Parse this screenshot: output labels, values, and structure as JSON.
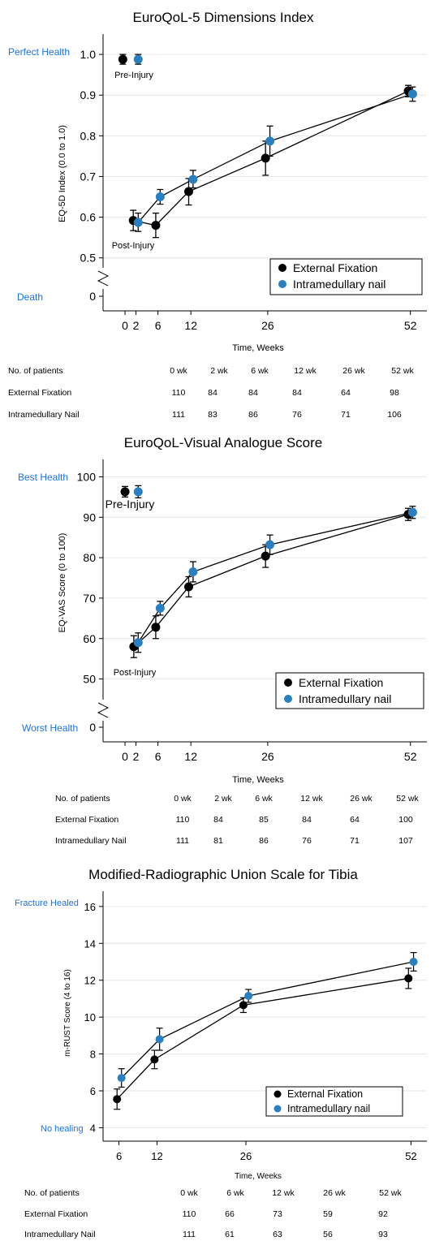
{
  "colors": {
    "external": "#000000",
    "intramedullary": "#2a7fc1",
    "label_blue": "#1a73e8"
  },
  "chart_data": [
    {
      "type": "line",
      "title": "EuroQoL-5 Dimensions Index",
      "xlabel": "Time, Weeks",
      "ylabel": "EQ-5D Index (0.0 to 1.0)",
      "xticks": [
        0,
        2,
        6,
        12,
        26,
        52
      ],
      "yticks": [
        0.5,
        0.6,
        0.7,
        0.8,
        0.9,
        1.0
      ],
      "ytick_labels": [
        "0.5",
        "0.6",
        "0.7",
        "0.8",
        "0.9",
        "1.0"
      ],
      "ylim": [
        0.45,
        1.05
      ],
      "xlim": [
        -4,
        55
      ],
      "extra_ytick": {
        "label": "0",
        "side_label": "Death"
      },
      "top_side_label": "Perfect Health",
      "broken_axis": true,
      "annotations": [
        {
          "text": "Pre-Injury",
          "at": "pre"
        },
        {
          "text": "Post-Injury",
          "at": "post"
        }
      ],
      "legend": {
        "placement": "bottom-right"
      },
      "series": [
        {
          "name": "External Fixation",
          "color_key": "external",
          "pre": {
            "x": -0.4,
            "y": 0.988,
            "lo": 0.976,
            "hi": 1.0
          },
          "x": [
            1.5,
            5.6,
            11.6,
            25.6,
            51.6
          ],
          "y": [
            0.592,
            0.58,
            0.663,
            0.745,
            0.91
          ],
          "lo": [
            0.567,
            0.55,
            0.63,
            0.703,
            0.896
          ],
          "hi": [
            0.617,
            0.61,
            0.695,
            0.787,
            0.924
          ]
        },
        {
          "name": "Intramedullary nail",
          "color_key": "intramedullary",
          "pre": {
            "x": 2.4,
            "y": 0.988,
            "lo": 0.976,
            "hi": 1.0
          },
          "x": [
            2.4,
            6.4,
            12.4,
            26.4,
            52.4
          ],
          "y": [
            0.587,
            0.65,
            0.693,
            0.787,
            0.903
          ],
          "lo": [
            0.565,
            0.632,
            0.672,
            0.75,
            0.885
          ],
          "hi": [
            0.61,
            0.668,
            0.715,
            0.824,
            0.92
          ]
        }
      ],
      "table": {
        "header": [
          "No. of patients",
          "0 wk",
          "2 wk",
          "6 wk",
          "12 wk",
          "26 wk",
          "52 wk"
        ],
        "rows": [
          [
            "External Fixation",
            "110",
            "84",
            "84",
            "84",
            "64",
            "98"
          ],
          [
            "Intramedullary Nail",
            "111",
            "83",
            "86",
            "76",
            "71",
            "106"
          ]
        ]
      }
    },
    {
      "type": "line",
      "title": "EuroQoL-Visual Analogue Score",
      "xlabel": "Time, Weeks",
      "ylabel": "EQ-VAS Score (0 to 100)",
      "xticks": [
        0,
        2,
        6,
        12,
        26,
        52
      ],
      "yticks": [
        50,
        60,
        70,
        80,
        90,
        100
      ],
      "ytick_labels": [
        "50",
        "60",
        "70",
        "80",
        "90",
        "100"
      ],
      "ylim": [
        44,
        104
      ],
      "xlim": [
        -4,
        55
      ],
      "extra_ytick": {
        "label": "0",
        "side_label": "Worst Health"
      },
      "top_side_label": "Best Health",
      "broken_axis": true,
      "annotations": [
        {
          "text": "Pre-Injury",
          "at": "pre"
        },
        {
          "text": "Post-Injury",
          "at": "post"
        }
      ],
      "legend": {
        "placement": "bottom-right"
      },
      "series": [
        {
          "name": "External Fixation",
          "color_key": "external",
          "pre": {
            "x": 0,
            "y": 96.3,
            "lo": 95.0,
            "hi": 97.6
          },
          "x": [
            1.6,
            5.6,
            11.6,
            25.6,
            51.6
          ],
          "y": [
            58,
            62.8,
            72.8,
            80.4,
            90.7
          ],
          "lo": [
            55.3,
            60.0,
            70.3,
            77.6,
            89.2
          ],
          "hi": [
            60.7,
            65.6,
            75.3,
            83.2,
            92.2
          ]
        },
        {
          "name": "Intramedullary nail",
          "color_key": "intramedullary",
          "pre": {
            "x": 2.4,
            "y": 96.3,
            "lo": 94.8,
            "hi": 97.8
          },
          "x": [
            2.4,
            6.4,
            12.4,
            26.4,
            52.4
          ],
          "y": [
            59,
            67.5,
            76.5,
            83.2,
            91.2
          ],
          "lo": [
            56.6,
            65.8,
            74.0,
            80.8,
            89.7
          ],
          "hi": [
            61.4,
            69.2,
            79.0,
            85.6,
            92.7
          ]
        }
      ],
      "table": {
        "header": [
          "No. of patients",
          "0 wk",
          "2 wk",
          "6 wk",
          "12 wk",
          "26 wk",
          "52 wk"
        ],
        "rows": [
          [
            "External Fixation",
            "110",
            "84",
            "85",
            "84",
            "64",
            "100"
          ],
          [
            "Intramedullary Nail",
            "111",
            "81",
            "86",
            "76",
            "71",
            "107"
          ]
        ]
      }
    },
    {
      "type": "line",
      "title": "Modified-Radiographic Union Scale for Tibia",
      "xlabel": "Time, Weeks",
      "ylabel": "m-RUST Score (4 to 16)",
      "xticks": [
        6,
        12,
        26,
        52
      ],
      "yticks": [
        4,
        6,
        8,
        10,
        12,
        14,
        16
      ],
      "ytick_labels": [
        "4",
        "6",
        "8",
        "10",
        "12",
        "14",
        "16"
      ],
      "ylim": [
        3.3,
        16.9
      ],
      "xlim": [
        3.5,
        54.5
      ],
      "top_side_label": "Fracture Healed",
      "bottom_side_label": "No healing",
      "broken_axis": false,
      "legend": {
        "placement": "bottom-right"
      },
      "series": [
        {
          "name": "External Fixation",
          "color_key": "external",
          "x": [
            5.7,
            11.6,
            25.6,
            51.6
          ],
          "y": [
            5.55,
            7.7,
            10.65,
            12.1
          ],
          "lo": [
            5.0,
            7.2,
            10.25,
            11.55
          ],
          "hi": [
            6.1,
            8.2,
            11.05,
            12.65
          ]
        },
        {
          "name": "Intramedullary nail",
          "color_key": "intramedullary",
          "x": [
            6.4,
            12.4,
            26.4,
            52.4
          ],
          "y": [
            6.7,
            8.8,
            11.15,
            13.0
          ],
          "lo": [
            6.2,
            8.2,
            10.8,
            12.5
          ],
          "hi": [
            7.2,
            9.4,
            11.5,
            13.5
          ]
        }
      ],
      "table": {
        "header": [
          "No. of patients",
          "0 wk",
          "6 wk",
          "12 wk",
          "26 wk",
          "52 wk"
        ],
        "rows": [
          [
            "External Fixation",
            "110",
            "66",
            "73",
            "59",
            "92"
          ],
          [
            "Intramedullary Nail",
            "111",
            "61",
            "63",
            "56",
            "93"
          ]
        ]
      }
    }
  ]
}
